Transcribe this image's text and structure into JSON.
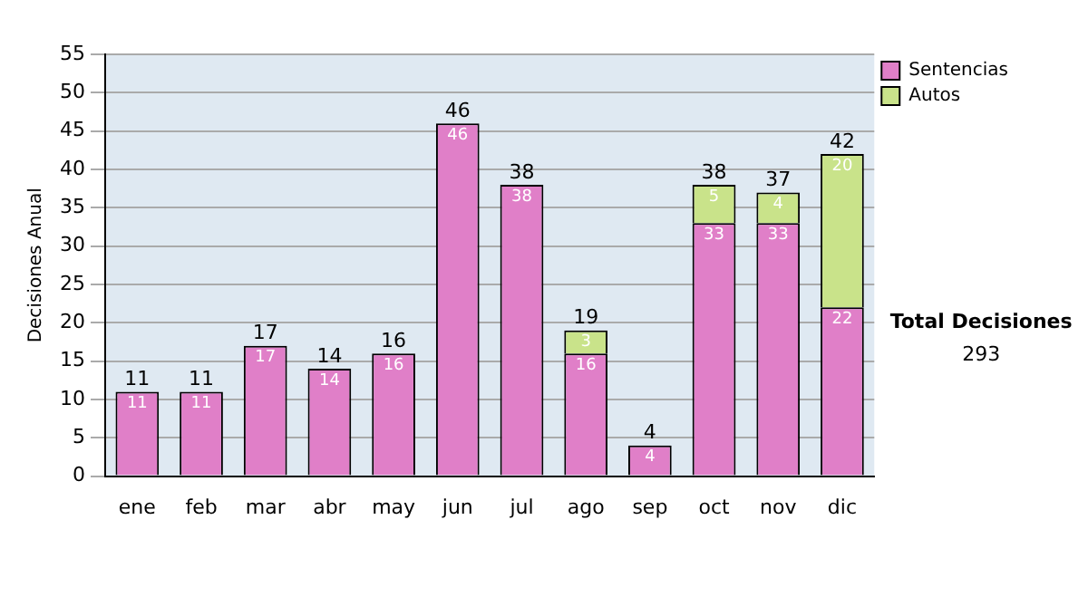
{
  "chart_data": {
    "type": "bar",
    "stacked": true,
    "ylabel": "Decisiones Anual",
    "categories": [
      "ene",
      "feb",
      "mar",
      "abr",
      "may",
      "jun",
      "jul",
      "ago",
      "sep",
      "oct",
      "nov",
      "dic"
    ],
    "series": [
      {
        "name": "Sentencias",
        "color": "#e07fc8",
        "values": [
          11,
          11,
          17,
          14,
          16,
          46,
          38,
          16,
          4,
          33,
          33,
          22
        ]
      },
      {
        "name": "Autos",
        "color": "#c9e38a",
        "values": [
          null,
          null,
          null,
          null,
          null,
          null,
          null,
          3,
          null,
          5,
          4,
          20
        ]
      }
    ],
    "totals": [
      "11",
      "11",
      "17",
      "14",
      "16",
      "46",
      "38",
      "19",
      "4",
      "38",
      "37",
      "42"
    ],
    "ylim": [
      0,
      55
    ],
    "yticks": [
      0,
      5,
      10,
      15,
      20,
      25,
      30,
      35,
      40,
      45,
      50,
      55
    ],
    "grid": "y",
    "legend": "right",
    "data_labels": true,
    "annotations": [
      "Total Decisiones",
      "293"
    ]
  }
}
